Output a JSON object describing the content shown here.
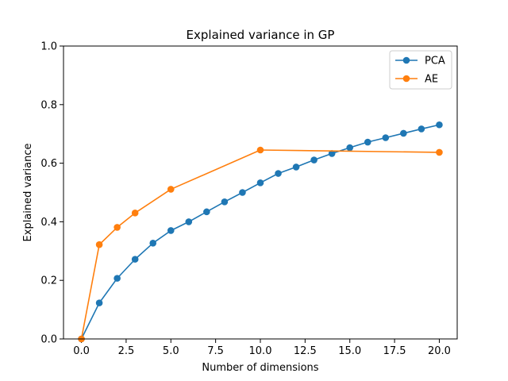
{
  "chart_data": {
    "type": "line",
    "title": "Explained variance in GP",
    "xlabel": "Number of dimensions",
    "ylabel": "Explained variance",
    "xlim": [
      -1.0,
      21.0
    ],
    "ylim": [
      0.0,
      1.0
    ],
    "x_ticks": [
      0.0,
      2.5,
      5.0,
      7.5,
      10.0,
      12.5,
      15.0,
      17.5,
      20.0
    ],
    "x_tick_labels": [
      "0.0",
      "2.5",
      "5.0",
      "7.5",
      "10.0",
      "12.5",
      "15.0",
      "17.5",
      "20.0"
    ],
    "y_ticks": [
      0.0,
      0.2,
      0.4,
      0.6,
      0.8,
      1.0
    ],
    "y_tick_labels": [
      "0.0",
      "0.2",
      "0.4",
      "0.6",
      "0.8",
      "1.0"
    ],
    "grid": false,
    "legend_position": "top-right",
    "series": [
      {
        "name": "PCA",
        "color": "#1f77b4",
        "marker": "circle",
        "x": [
          0,
          1,
          2,
          3,
          4,
          5,
          6,
          7,
          8,
          9,
          10,
          11,
          12,
          13,
          14,
          15,
          16,
          17,
          18,
          19,
          20
        ],
        "y": [
          0.0,
          0.123,
          0.207,
          0.272,
          0.327,
          0.37,
          0.4,
          0.434,
          0.468,
          0.5,
          0.533,
          0.565,
          0.587,
          0.611,
          0.633,
          0.653,
          0.672,
          0.687,
          0.702,
          0.717,
          0.731
        ]
      },
      {
        "name": "AE",
        "color": "#ff7f0e",
        "marker": "circle",
        "x": [
          0,
          1,
          2,
          3,
          5,
          10,
          20
        ],
        "y": [
          0.0,
          0.322,
          0.381,
          0.43,
          0.511,
          0.645,
          0.637
        ]
      }
    ]
  }
}
